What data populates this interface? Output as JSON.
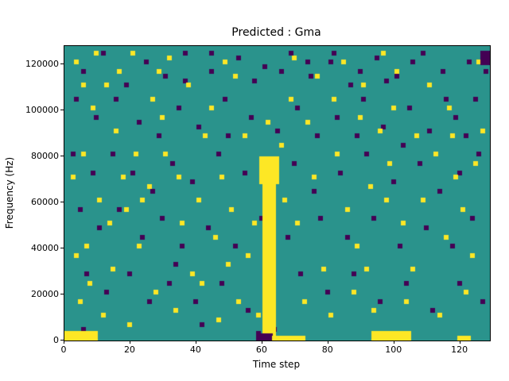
{
  "figure": {
    "title": "Predicted : Gma",
    "xlabel": "Time step",
    "ylabel": "Frequency (Hz)"
  },
  "chart_data": {
    "type": "heatmap",
    "title": "Predicted : Gma",
    "xlabel": "Time step",
    "ylabel": "Frequency (Hz)",
    "xlim": [
      0,
      129
    ],
    "ylim": [
      0,
      128000
    ],
    "xticks": [
      0,
      20,
      40,
      60,
      80,
      100,
      120
    ],
    "yticks": [
      0,
      20000,
      40000,
      60000,
      80000,
      100000,
      120000
    ],
    "grid": false,
    "legend": "none",
    "colors": {
      "background": "#2a938c",
      "high": "#fde725",
      "low": "#440154"
    },
    "cell": {
      "dx_time_steps": 1,
      "dy_hz": 2000
    },
    "regions": [
      {
        "x0": 60,
        "x1": 64,
        "y0": 2000,
        "y1": 80000,
        "value": "high"
      },
      {
        "x0": 59,
        "x1": 65,
        "y0": 68000,
        "y1": 80000,
        "value": "high"
      },
      {
        "x0": 58,
        "x1": 63,
        "y0": 0,
        "y1": 3000,
        "value": "low"
      },
      {
        "x0": 0,
        "x1": 10,
        "y0": 0,
        "y1": 4000,
        "value": "high"
      },
      {
        "x0": 63,
        "x1": 73,
        "y0": 0,
        "y1": 2000,
        "value": "high"
      },
      {
        "x0": 93,
        "x1": 105,
        "y0": 0,
        "y1": 4000,
        "value": "high"
      },
      {
        "x0": 119,
        "x1": 123,
        "y0": 0,
        "y1": 2000,
        "value": "high"
      },
      {
        "x0": 126,
        "x1": 129,
        "y0": 120000,
        "y1": 126000,
        "value": "low"
      }
    ],
    "cells_high": [
      [
        3,
        60
      ],
      [
        12,
        55
      ],
      [
        20,
        62
      ],
      [
        28,
        58
      ],
      [
        8,
        50
      ],
      [
        15,
        45
      ],
      [
        5,
        40
      ],
      [
        2,
        35
      ],
      [
        10,
        30
      ],
      [
        18,
        28
      ],
      [
        25,
        33
      ],
      [
        30,
        40
      ],
      [
        35,
        25
      ],
      [
        40,
        30
      ],
      [
        22,
        20
      ],
      [
        14,
        15
      ],
      [
        7,
        12
      ],
      [
        4,
        8
      ],
      [
        11,
        5
      ],
      [
        19,
        3
      ],
      [
        27,
        10
      ],
      [
        33,
        6
      ],
      [
        38,
        14
      ],
      [
        45,
        22
      ],
      [
        50,
        28
      ],
      [
        47,
        35
      ],
      [
        55,
        18
      ],
      [
        52,
        8
      ],
      [
        58,
        5
      ],
      [
        66,
        30
      ],
      [
        70,
        25
      ],
      [
        75,
        35
      ],
      [
        78,
        15
      ],
      [
        82,
        40
      ],
      [
        85,
        28
      ],
      [
        88,
        20
      ],
      [
        92,
        33
      ],
      [
        95,
        45
      ],
      [
        90,
        55
      ],
      [
        98,
        38
      ],
      [
        102,
        25
      ],
      [
        105,
        15
      ],
      [
        108,
        30
      ],
      [
        112,
        40
      ],
      [
        115,
        22
      ],
      [
        118,
        35
      ],
      [
        120,
        28
      ],
      [
        123,
        18
      ],
      [
        126,
        45
      ],
      [
        125,
        60
      ],
      [
        110,
        55
      ],
      [
        100,
        58
      ],
      [
        96,
        62
      ],
      [
        84,
        60
      ],
      [
        76,
        57
      ],
      [
        68,
        52
      ],
      [
        61,
        47
      ],
      [
        44,
        50
      ],
      [
        37,
        55
      ],
      [
        31,
        61
      ],
      [
        16,
        58
      ],
      [
        9,
        62
      ],
      [
        48,
        60
      ],
      [
        54,
        44
      ],
      [
        63,
        38
      ],
      [
        72,
        8
      ],
      [
        80,
        5
      ],
      [
        87,
        10
      ],
      [
        93,
        6
      ],
      [
        103,
        8
      ],
      [
        113,
        5
      ],
      [
        121,
        10
      ],
      [
        6,
        20
      ],
      [
        13,
        25
      ],
      [
        21,
        40
      ],
      [
        29,
        48
      ],
      [
        41,
        12
      ],
      [
        49,
        16
      ],
      [
        57,
        25
      ],
      [
        65,
        42
      ],
      [
        73,
        47
      ],
      [
        81,
        52
      ],
      [
        89,
        48
      ],
      [
        97,
        30
      ],
      [
        106,
        44
      ],
      [
        116,
        50
      ],
      [
        124,
        38
      ],
      [
        34,
        35
      ],
      [
        42,
        44
      ],
      [
        26,
        52
      ],
      [
        17,
        35
      ],
      [
        23,
        30
      ],
      [
        3,
        18
      ],
      [
        46,
        4
      ],
      [
        51,
        57
      ],
      [
        69,
        61
      ],
      [
        91,
        15
      ],
      [
        99,
        50
      ],
      [
        117,
        44
      ],
      [
        5,
        55
      ]
    ],
    "cells_low": [
      [
        5,
        58
      ],
      [
        11,
        62
      ],
      [
        18,
        55
      ],
      [
        24,
        60
      ],
      [
        30,
        57
      ],
      [
        36,
        62
      ],
      [
        44,
        58
      ],
      [
        52,
        61
      ],
      [
        60,
        59
      ],
      [
        68,
        62
      ],
      [
        74,
        57
      ],
      [
        80,
        60
      ],
      [
        86,
        55
      ],
      [
        94,
        61
      ],
      [
        100,
        57
      ],
      [
        108,
        62
      ],
      [
        114,
        58
      ],
      [
        122,
        60
      ],
      [
        127,
        62
      ],
      [
        127,
        58
      ],
      [
        3,
        52
      ],
      [
        9,
        48
      ],
      [
        15,
        52
      ],
      [
        22,
        47
      ],
      [
        28,
        44
      ],
      [
        34,
        50
      ],
      [
        40,
        46
      ],
      [
        48,
        52
      ],
      [
        56,
        48
      ],
      [
        64,
        45
      ],
      [
        70,
        50
      ],
      [
        76,
        44
      ],
      [
        82,
        48
      ],
      [
        90,
        52
      ],
      [
        96,
        46
      ],
      [
        104,
        50
      ],
      [
        110,
        45
      ],
      [
        118,
        48
      ],
      [
        124,
        52
      ],
      [
        2,
        40
      ],
      [
        8,
        36
      ],
      [
        14,
        40
      ],
      [
        20,
        36
      ],
      [
        26,
        32
      ],
      [
        32,
        38
      ],
      [
        38,
        34
      ],
      [
        46,
        40
      ],
      [
        54,
        36
      ],
      [
        62,
        32
      ],
      [
        69,
        38
      ],
      [
        75,
        32
      ],
      [
        83,
        36
      ],
      [
        91,
        40
      ],
      [
        99,
        34
      ],
      [
        107,
        38
      ],
      [
        113,
        32
      ],
      [
        119,
        36
      ],
      [
        125,
        40
      ],
      [
        4,
        28
      ],
      [
        10,
        24
      ],
      [
        16,
        28
      ],
      [
        23,
        22
      ],
      [
        29,
        26
      ],
      [
        35,
        20
      ],
      [
        43,
        24
      ],
      [
        51,
        20
      ],
      [
        59,
        26
      ],
      [
        67,
        22
      ],
      [
        77,
        26
      ],
      [
        85,
        22
      ],
      [
        93,
        26
      ],
      [
        101,
        20
      ],
      [
        109,
        24
      ],
      [
        117,
        20
      ],
      [
        123,
        26
      ],
      [
        6,
        14
      ],
      [
        12,
        10
      ],
      [
        19,
        14
      ],
      [
        25,
        8
      ],
      [
        31,
        12
      ],
      [
        39,
        8
      ],
      [
        47,
        12
      ],
      [
        55,
        6
      ],
      [
        63,
        2
      ],
      [
        71,
        14
      ],
      [
        79,
        10
      ],
      [
        87,
        14
      ],
      [
        95,
        8
      ],
      [
        103,
        12
      ],
      [
        111,
        6
      ],
      [
        119,
        12
      ],
      [
        126,
        8
      ],
      [
        58,
        1
      ],
      [
        41,
        3
      ],
      [
        5,
        2
      ],
      [
        33,
        16
      ],
      [
        49,
        44
      ],
      [
        57,
        56
      ],
      [
        65,
        58
      ],
      [
        73,
        60
      ],
      [
        81,
        62
      ],
      [
        89,
        58
      ],
      [
        97,
        56
      ],
      [
        105,
        60
      ],
      [
        44,
        62
      ],
      [
        88,
        44
      ],
      [
        102,
        42
      ],
      [
        115,
        52
      ],
      [
        121,
        44
      ],
      [
        36,
        56
      ]
    ]
  }
}
